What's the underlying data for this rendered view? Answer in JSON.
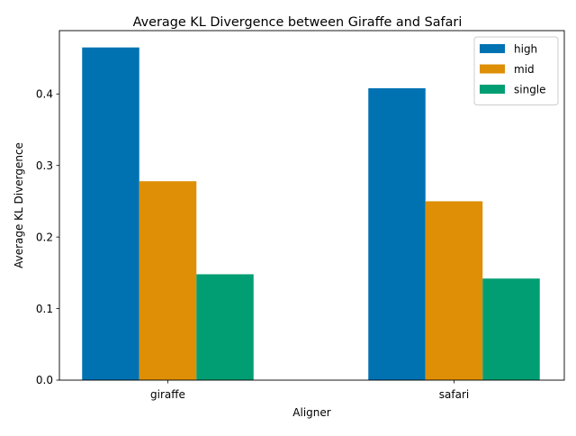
{
  "chart_data": {
    "type": "bar",
    "title": "Average KL Divergence between Giraffe and Safari",
    "xlabel": "Aligner",
    "ylabel": "Average KL Divergence",
    "categories": [
      "giraffe",
      "safari"
    ],
    "series": [
      {
        "name": "high",
        "values": [
          0.465,
          0.408
        ],
        "color": "#0072b2"
      },
      {
        "name": "mid",
        "values": [
          0.278,
          0.25
        ],
        "color": "#de8f05"
      },
      {
        "name": "single",
        "values": [
          0.148,
          0.142
        ],
        "color": "#029e73"
      }
    ],
    "ylim": [
      0,
      0.4885
    ],
    "yticks": [
      0.0,
      0.1,
      0.2,
      0.3,
      0.4
    ],
    "ytick_labels": [
      "0.0",
      "0.1",
      "0.2",
      "0.3",
      "0.4"
    ],
    "grid": false,
    "legend_position": "top-right"
  }
}
